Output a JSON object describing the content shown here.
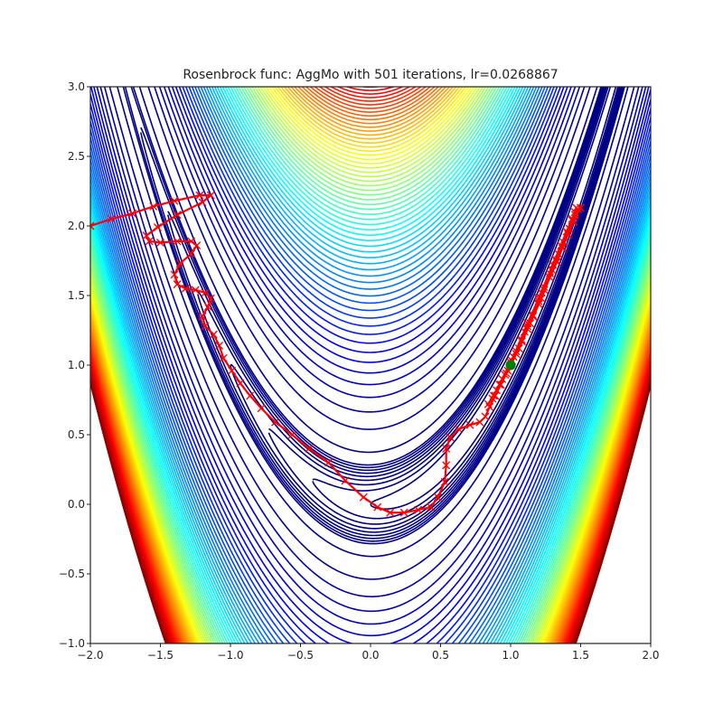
{
  "chart_data": {
    "type": "contour",
    "title": "Rosenbrock func: AggMo with 501 iterations, lr=0.0268867",
    "xlabel": "",
    "ylabel": "",
    "xlim": [
      -2.0,
      2.0
    ],
    "ylim": [
      -1.0,
      3.0
    ],
    "x_ticks": [
      "−2.0",
      "−1.5",
      "−1.0",
      "−0.5",
      "0.0",
      "0.5",
      "1.0",
      "1.5",
      "2.0"
    ],
    "y_ticks": [
      "−1.0",
      "−0.5",
      "0.0",
      "0.5",
      "1.0",
      "1.5",
      "2.0",
      "2.5",
      "3.0"
    ],
    "grid": false,
    "colormap": "jet",
    "function": "rosenbrock",
    "contour_levels": [
      0,
      1000
    ],
    "trajectory": {
      "color": "#ff0000",
      "marker": "x",
      "points": [
        [
          -2.0,
          2.0
        ],
        [
          -1.85,
          2.05
        ],
        [
          -1.7,
          2.09
        ],
        [
          -1.55,
          2.14
        ],
        [
          -1.4,
          2.18
        ],
        [
          -1.22,
          2.22
        ],
        [
          -1.14,
          2.22
        ],
        [
          -1.2,
          2.17
        ],
        [
          -1.38,
          2.08
        ],
        [
          -1.52,
          1.99
        ],
        [
          -1.6,
          1.93
        ],
        [
          -1.58,
          1.89
        ],
        [
          -1.5,
          1.88
        ],
        [
          -1.38,
          1.89
        ],
        [
          -1.28,
          1.89
        ],
        [
          -1.24,
          1.86
        ],
        [
          -1.28,
          1.8
        ],
        [
          -1.36,
          1.73
        ],
        [
          -1.4,
          1.65
        ],
        [
          -1.38,
          1.58
        ],
        [
          -1.32,
          1.55
        ],
        [
          -1.25,
          1.54
        ],
        [
          -1.18,
          1.52
        ],
        [
          -1.14,
          1.48
        ],
        [
          -1.16,
          1.42
        ],
        [
          -1.2,
          1.35
        ],
        [
          -1.18,
          1.28
        ],
        [
          -1.12,
          1.22
        ],
        [
          -1.08,
          1.14
        ],
        [
          -1.05,
          1.05
        ],
        [
          -0.99,
          0.96
        ],
        [
          -0.93,
          0.87
        ],
        [
          -0.86,
          0.78
        ],
        [
          -0.78,
          0.69
        ],
        [
          -0.68,
          0.59
        ],
        [
          -0.56,
          0.5
        ],
        [
          -0.44,
          0.4
        ],
        [
          -0.3,
          0.3
        ],
        [
          -0.18,
          0.17
        ],
        [
          -0.05,
          0.05
        ],
        [
          0.05,
          -0.02
        ],
        [
          0.14,
          -0.06
        ],
        [
          0.24,
          -0.06
        ],
        [
          0.34,
          -0.04
        ],
        [
          0.43,
          -0.02
        ],
        [
          0.48,
          0.05
        ],
        [
          0.53,
          0.16
        ],
        [
          0.54,
          0.28
        ],
        [
          0.54,
          0.4
        ],
        [
          0.57,
          0.48
        ],
        [
          0.63,
          0.54
        ],
        [
          0.71,
          0.57
        ],
        [
          0.78,
          0.59
        ],
        [
          0.82,
          0.63
        ],
        [
          0.85,
          0.7
        ],
        [
          0.89,
          0.78
        ],
        [
          0.93,
          0.86
        ],
        [
          0.97,
          0.94
        ],
        [
          1.0,
          1.0
        ],
        [
          1.04,
          1.08
        ],
        [
          1.08,
          1.17
        ],
        [
          1.12,
          1.26
        ],
        [
          1.16,
          1.35
        ],
        [
          1.2,
          1.44
        ],
        [
          1.24,
          1.54
        ],
        [
          1.28,
          1.63
        ],
        [
          1.33,
          1.74
        ],
        [
          1.37,
          1.84
        ],
        [
          1.41,
          1.94
        ],
        [
          1.45,
          2.03
        ],
        [
          1.48,
          2.12
        ],
        [
          1.44,
          2.05
        ],
        [
          1.36,
          1.86
        ],
        [
          1.28,
          1.66
        ],
        [
          1.2,
          1.46
        ],
        [
          1.12,
          1.28
        ],
        [
          1.04,
          1.1
        ],
        [
          0.96,
          0.93
        ],
        [
          0.88,
          0.78
        ],
        [
          0.84,
          0.72
        ],
        [
          0.9,
          0.82
        ],
        [
          0.98,
          0.96
        ],
        [
          1.06,
          1.12
        ],
        [
          1.14,
          1.3
        ],
        [
          1.22,
          1.48
        ],
        [
          1.3,
          1.68
        ],
        [
          1.38,
          1.88
        ],
        [
          1.46,
          2.08
        ],
        [
          1.5,
          2.13
        ],
        [
          1.42,
          1.98
        ],
        [
          1.32,
          1.76
        ],
        [
          1.22,
          1.52
        ],
        [
          1.12,
          1.3
        ],
        [
          1.02,
          1.06
        ],
        [
          0.94,
          0.9
        ],
        [
          0.87,
          0.76
        ],
        [
          0.92,
          0.86
        ],
        [
          1.0,
          1.02
        ],
        [
          1.08,
          1.18
        ],
        [
          1.16,
          1.36
        ],
        [
          1.24,
          1.56
        ],
        [
          1.34,
          1.8
        ],
        [
          1.44,
          2.04
        ],
        [
          1.47,
          2.13
        ],
        [
          1.46,
          2.1
        ],
        [
          1.4,
          1.96
        ],
        [
          1.3,
          1.72
        ],
        [
          1.2,
          1.48
        ],
        [
          1.1,
          1.24
        ],
        [
          1.01,
          1.03
        ],
        [
          1.0,
          1.0
        ]
      ]
    },
    "minimum_marker": {
      "x": 1.0,
      "y": 1.0,
      "color": "#008000",
      "shape": "circle"
    }
  }
}
